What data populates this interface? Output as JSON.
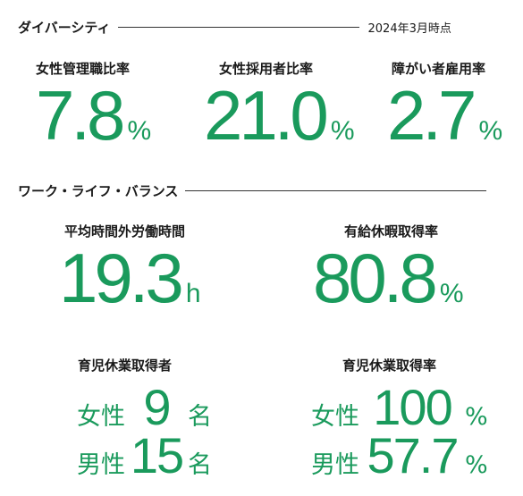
{
  "diversity": {
    "title": "ダイバーシティ",
    "as_of": "2024年3月時点",
    "stats": [
      {
        "label": "女性管理職比率",
        "value": "7.8",
        "unit": "%"
      },
      {
        "label": "女性採用者比率",
        "value": "21.0",
        "unit": "%"
      },
      {
        "label": "障がい者雇用率",
        "value": "2.7",
        "unit": "%"
      }
    ]
  },
  "work_life": {
    "title": "ワーク・ライフ・バランス",
    "stats": [
      {
        "label": "平均時間外労働時間",
        "value": "19.3",
        "unit": "h"
      },
      {
        "label": "有給休暇取得率",
        "value": "80.8",
        "unit": "%"
      }
    ],
    "childcare_takers": {
      "label": "育児休業取得者",
      "rows": [
        {
          "gender": "女性",
          "value": "9",
          "unit": "名"
        },
        {
          "gender": "男性",
          "value": "15",
          "unit": "名"
        }
      ]
    },
    "childcare_rate": {
      "label": "育児休業取得率",
      "rows": [
        {
          "gender": "女性",
          "value": "100",
          "unit": "%"
        },
        {
          "gender": "男性",
          "value": "57.7",
          "unit": "%"
        }
      ]
    }
  },
  "colors": {
    "accent_green": "#1a9a5c",
    "text": "#1a1a1a",
    "rule": "#333333"
  }
}
